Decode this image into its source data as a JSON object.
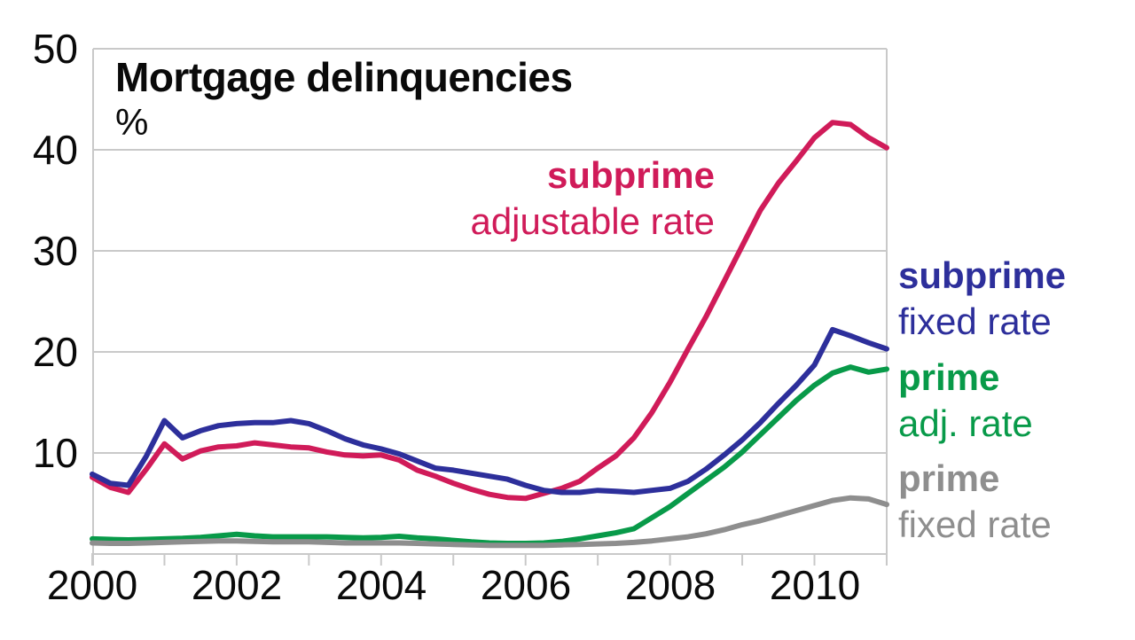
{
  "chart_data": {
    "type": "line",
    "title": "Mortgage delinquencies",
    "ylabel": "%",
    "xlim": [
      2000,
      2011
    ],
    "ylim": [
      0,
      50
    ],
    "yticks": [
      50,
      40,
      30,
      20,
      10
    ],
    "ytick_labels": [
      "50",
      "40",
      "30",
      "20",
      "10"
    ],
    "xticks_labeled": [
      2000,
      2002,
      2004,
      2006,
      2008,
      2010
    ],
    "xtick_labels": [
      "2000",
      "2002",
      "2004",
      "2006",
      "2008",
      "2010"
    ],
    "xticks_minor_years": [
      2000,
      2001,
      2002,
      2003,
      2004,
      2005,
      2006,
      2007,
      2008,
      2009,
      2010,
      2011
    ],
    "grid": "horizontal",
    "grid_color": "#c9c9c9",
    "legend_position": "right-margin and inline annotation",
    "x": [
      2000.0,
      2000.25,
      2000.5,
      2000.75,
      2001.0,
      2001.25,
      2001.5,
      2001.75,
      2002.0,
      2002.25,
      2002.5,
      2002.75,
      2003.0,
      2003.25,
      2003.5,
      2003.75,
      2004.0,
      2004.25,
      2004.5,
      2004.75,
      2005.0,
      2005.25,
      2005.5,
      2005.75,
      2006.0,
      2006.25,
      2006.5,
      2006.75,
      2007.0,
      2007.25,
      2007.5,
      2007.75,
      2008.0,
      2008.25,
      2008.5,
      2008.75,
      2009.0,
      2009.25,
      2009.5,
      2009.75,
      2010.0,
      2010.25,
      2010.5,
      2010.75,
      2011.0
    ],
    "series": [
      {
        "id": "subprime-arm",
        "name": "subprime adjustable rate",
        "color": "#d01b59",
        "values": [
          7.6,
          6.6,
          6.1,
          8.4,
          10.9,
          9.4,
          10.2,
          10.6,
          10.7,
          11.0,
          10.8,
          10.6,
          10.5,
          10.1,
          9.8,
          9.7,
          9.8,
          9.3,
          8.3,
          7.7,
          7.0,
          6.4,
          5.9,
          5.6,
          5.5,
          6.0,
          6.5,
          7.2,
          8.5,
          9.7,
          11.5,
          14.0,
          17.0,
          20.3,
          23.5,
          27.0,
          30.5,
          34.0,
          36.7,
          38.9,
          41.2,
          42.7,
          42.5,
          41.2,
          40.2
        ]
      },
      {
        "id": "subprime-fixed",
        "name": "subprime fixed rate",
        "color": "#2d2f9b",
        "values": [
          7.9,
          7.0,
          6.8,
          9.7,
          13.2,
          11.5,
          12.2,
          12.7,
          12.9,
          13.0,
          13.0,
          13.2,
          12.9,
          12.2,
          11.4,
          10.8,
          10.4,
          9.9,
          9.2,
          8.5,
          8.3,
          8.0,
          7.7,
          7.4,
          6.8,
          6.3,
          6.1,
          6.1,
          6.3,
          6.2,
          6.1,
          6.3,
          6.5,
          7.2,
          8.4,
          9.8,
          11.3,
          13.0,
          14.9,
          16.7,
          18.7,
          22.2,
          21.6,
          20.9,
          20.3
        ]
      },
      {
        "id": "prime-arm",
        "name": "prime adj. rate",
        "color": "#089a49",
        "values": [
          1.5,
          1.45,
          1.4,
          1.45,
          1.5,
          1.55,
          1.65,
          1.8,
          1.95,
          1.8,
          1.7,
          1.7,
          1.7,
          1.7,
          1.65,
          1.6,
          1.65,
          1.75,
          1.6,
          1.5,
          1.35,
          1.2,
          1.1,
          1.05,
          1.05,
          1.1,
          1.25,
          1.5,
          1.8,
          2.1,
          2.5,
          3.6,
          4.7,
          6.0,
          7.3,
          8.6,
          10.1,
          11.8,
          13.5,
          15.2,
          16.7,
          17.9,
          18.5,
          18.0,
          18.3
        ]
      },
      {
        "id": "prime-fixed",
        "name": "prime fixed rate",
        "color": "#8e8e8e",
        "values": [
          1.1,
          1.05,
          1.05,
          1.1,
          1.15,
          1.2,
          1.25,
          1.3,
          1.3,
          1.25,
          1.2,
          1.2,
          1.2,
          1.15,
          1.1,
          1.1,
          1.1,
          1.1,
          1.05,
          1.0,
          0.95,
          0.9,
          0.85,
          0.85,
          0.85,
          0.85,
          0.9,
          0.95,
          1.0,
          1.05,
          1.15,
          1.3,
          1.5,
          1.7,
          2.0,
          2.4,
          2.9,
          3.3,
          3.8,
          4.3,
          4.8,
          5.3,
          5.55,
          5.45,
          4.9
        ]
      }
    ]
  },
  "labels": {
    "title": "Mortgage delinquencies",
    "unit": "%",
    "subprime_arm_line1": "subprime",
    "subprime_arm_line2": "adjustable rate",
    "subprime_fixed_line1": "subprime",
    "subprime_fixed_line2": "fixed rate",
    "prime_arm_line1": "prime",
    "prime_arm_line2": "adj. rate",
    "prime_fixed_line1": "prime",
    "prime_fixed_line2": "fixed rate"
  },
  "axis": {
    "yticks": [
      "50",
      "40",
      "30",
      "20",
      "10"
    ],
    "xticks": [
      "2000",
      "2002",
      "2004",
      "2006",
      "2008",
      "2010"
    ]
  }
}
